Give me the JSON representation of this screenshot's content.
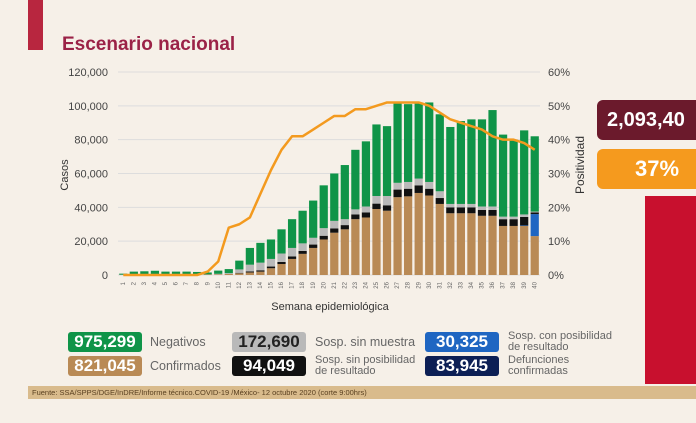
{
  "title": "Escenario nacional",
  "chart_data": {
    "type": "bar",
    "stacked": true,
    "xlabel": "Semana epidemiológica",
    "ylabel": "Casos",
    "y2label": "Positividad",
    "ylim": [
      0,
      120000
    ],
    "y2lim": [
      0,
      60
    ],
    "yticks": [
      "0",
      "20,000",
      "40,000",
      "60,000",
      "80,000",
      "100,000",
      "120,000"
    ],
    "y2ticks": [
      "0%",
      "10%",
      "20%",
      "30%",
      "40%",
      "50%",
      "60%"
    ],
    "grid": true,
    "categories": [
      "1",
      "2",
      "3",
      "4",
      "5",
      "6",
      "7",
      "8",
      "9",
      "10",
      "11",
      "12",
      "13",
      "14",
      "15",
      "16",
      "17",
      "18",
      "19",
      "20",
      "21",
      "22",
      "23",
      "24",
      "25",
      "26",
      "27",
      "28",
      "29",
      "30",
      "31",
      "32",
      "33",
      "34",
      "35",
      "36",
      "37",
      "38",
      "39",
      "40"
    ],
    "series": [
      {
        "name": "Confirmados",
        "color": "#b98a55",
        "values": [
          100,
          150,
          200,
          250,
          200,
          200,
          200,
          200,
          300,
          400,
          600,
          1000,
          1500,
          2000,
          4000,
          6500,
          9500,
          12500,
          16000,
          21000,
          25000,
          27000,
          33000,
          34000,
          39000,
          38000,
          46000,
          46500,
          48500,
          47000,
          42000,
          36500,
          36500,
          36500,
          35000,
          35000,
          29000,
          29000,
          29000,
          23000
        ]
      },
      {
        "name": "Sosp. con posibilidad de resultado",
        "color": "#1f66c2",
        "values": [
          0,
          0,
          0,
          0,
          0,
          0,
          0,
          0,
          0,
          0,
          0,
          0,
          0,
          0,
          0,
          0,
          0,
          0,
          0,
          0,
          0,
          0,
          0,
          0,
          0,
          0,
          0,
          0,
          0,
          0,
          0,
          0,
          0,
          0,
          0,
          0,
          0,
          0,
          300,
          13000
        ]
      },
      {
        "name": "Sosp. sin posibilidad de resultado",
        "color": "#111111",
        "values": [
          0,
          0,
          0,
          0,
          0,
          0,
          0,
          0,
          0,
          0,
          0,
          300,
          600,
          800,
          1000,
          1200,
          1500,
          1700,
          2000,
          2200,
          2500,
          2500,
          2800,
          3000,
          3200,
          3200,
          4500,
          4500,
          4500,
          4000,
          3500,
          3500,
          3500,
          3500,
          3500,
          3500,
          4000,
          4000,
          5000,
          1000
        ]
      },
      {
        "name": "Sosp. sin muestra",
        "color": "#b9b9b9",
        "values": [
          100,
          100,
          100,
          100,
          100,
          100,
          100,
          100,
          100,
          300,
          500,
          2000,
          4000,
          4500,
          4500,
          5000,
          5000,
          4500,
          4000,
          4500,
          4500,
          3500,
          3000,
          3500,
          4500,
          5500,
          4000,
          4000,
          4000,
          4000,
          4000,
          2000,
          2000,
          2000,
          2000,
          2000,
          1500,
          1500,
          1500,
          500
        ]
      },
      {
        "name": "Negativos",
        "color": "#0f9448",
        "values": [
          600,
          1750,
          1900,
          2150,
          1700,
          1700,
          1700,
          1500,
          1100,
          1900,
          2400,
          5200,
          9900,
          11700,
          11500,
          14300,
          17000,
          19300,
          22000,
          25300,
          28000,
          32000,
          35200,
          38500,
          42300,
          41300,
          47000,
          46000,
          45000,
          47000,
          45500,
          45500,
          49000,
          50000,
          51500,
          57000,
          48500,
          45500,
          49700,
          44500
        ]
      }
    ],
    "line": {
      "name": "Positividad",
      "color": "#f39a1f",
      "axis": "right",
      "values": [
        0,
        0,
        0,
        0,
        0,
        0,
        0,
        0,
        1,
        4,
        14,
        15,
        17,
        24,
        31,
        37,
        41,
        41,
        43,
        45,
        47,
        47,
        49,
        49,
        50,
        51,
        51,
        51,
        51,
        50,
        48,
        46,
        45,
        44,
        43,
        41,
        40,
        40,
        39,
        37
      ]
    }
  },
  "legend": [
    {
      "value": "975,299",
      "label": "Negativos",
      "color": "#0f9448"
    },
    {
      "value": "172,690",
      "label": "Sosp. sin muestra",
      "color": "#b9b9b9",
      "textcolor": "#222222"
    },
    {
      "value": "30,325",
      "label1": "Sosp. con posibilidad",
      "label2": "de resultado",
      "color": "#1f66c2"
    },
    {
      "value": "821,045",
      "label": "Confirmados",
      "color": "#b98a55"
    },
    {
      "value": "94,049",
      "label1": "Sosp. sin posibilidad",
      "label2": "de resultado",
      "color": "#111111"
    },
    {
      "value": "83,945",
      "label1": "Defunciones",
      "label2": "confirmadas",
      "color": "#0c1f55"
    }
  ],
  "side": {
    "total": "2,093,40",
    "positivity": "37%"
  },
  "footer": "Fuente: SSA/SPPS/DGE/InDRE/Informe técnico.COVID-19 /México- 12 octubre 2020 (corte 9:00hrs)"
}
